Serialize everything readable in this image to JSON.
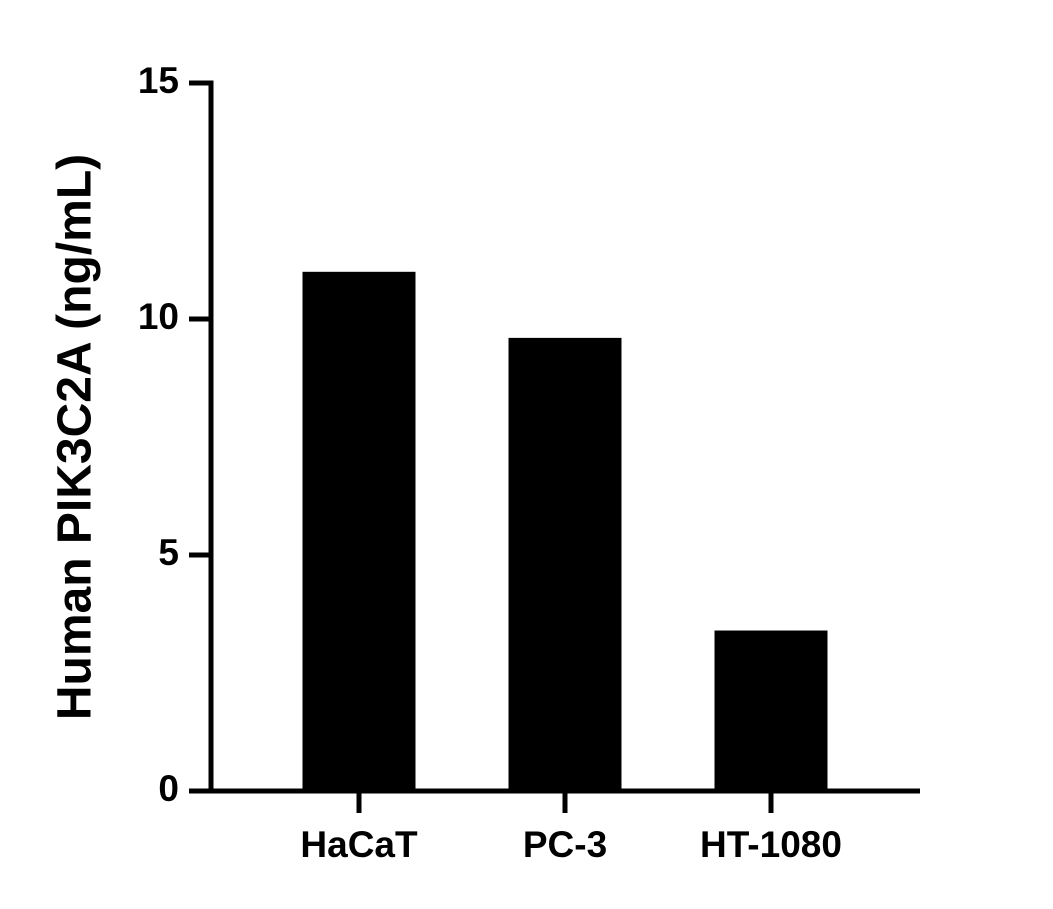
{
  "chart_data": {
    "type": "bar",
    "y_label": "Human PIK3C2A (ng/mL)",
    "categories": [
      "HaCaT",
      "PC-3",
      "HT-1080"
    ],
    "values": [
      11.0,
      9.6,
      3.4
    ],
    "color": "#000000",
    "ylim": [
      0,
      15
    ],
    "yticks": [
      0,
      5,
      10,
      15
    ],
    "grid": false
  }
}
